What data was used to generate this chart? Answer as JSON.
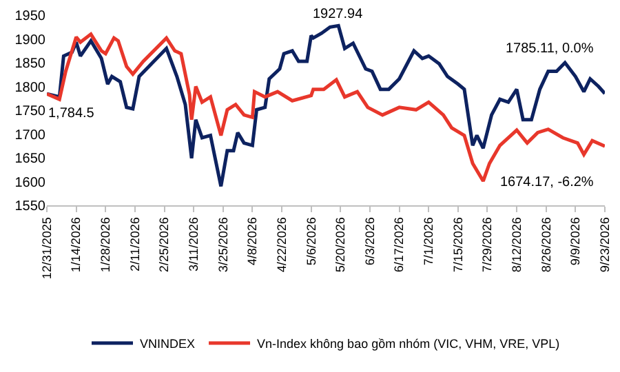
{
  "chart_data": {
    "type": "line",
    "xlim": [
      "2025-12-31",
      "2026-09-23"
    ],
    "xticks": [
      {
        "value": "2025-12-31",
        "label": "12/31/2025"
      },
      {
        "value": "2026-01-14",
        "label": "1/14/2026"
      },
      {
        "value": "2026-01-28",
        "label": "1/28/2026"
      },
      {
        "value": "2026-02-11",
        "label": "2/11/2026"
      },
      {
        "value": "2026-02-25",
        "label": "2/25/2026"
      },
      {
        "value": "2026-03-11",
        "label": "3/11/2026"
      },
      {
        "value": "2026-03-25",
        "label": "3/25/2026"
      },
      {
        "value": "2026-04-08",
        "label": "4/8/2026"
      },
      {
        "value": "2026-04-22",
        "label": "4/22/2026"
      },
      {
        "value": "2026-05-06",
        "label": "5/6/2026"
      },
      {
        "value": "2026-05-20",
        "label": "5/20/2026"
      },
      {
        "value": "2026-06-03",
        "label": "6/3/2026"
      },
      {
        "value": "2026-06-17",
        "label": "6/17/2026"
      },
      {
        "value": "2026-07-01",
        "label": "7/1/2026"
      },
      {
        "value": "2026-07-15",
        "label": "7/15/2026"
      },
      {
        "value": "2026-07-29",
        "label": "7/29/2026"
      },
      {
        "value": "2026-08-12",
        "label": "8/12/2026"
      },
      {
        "value": "2026-08-26",
        "label": "8/26/2026"
      },
      {
        "value": "2026-09-09",
        "label": "9/9/2026"
      },
      {
        "value": "2026-09-23",
        "label": "9/23/2026"
      }
    ],
    "ylim": [
      1550,
      1950
    ],
    "yticks": [
      1550,
      1600,
      1650,
      1700,
      1750,
      1800,
      1850,
      1900,
      1950
    ],
    "legend": "bottom",
    "marker": "none",
    "line_style": "solid",
    "annotations": [
      {
        "text": "1,784.5",
        "x": "2025-12-31",
        "y": 1784.5
      },
      {
        "text": "1927.94",
        "x": "2026-05-19",
        "y": 1927.94
      },
      {
        "text": "1785.11, 0.0%",
        "x": "2026-09-23",
        "y": 1785.11
      },
      {
        "text": "1674.17, -6.2%",
        "x": "2026-09-23",
        "y": 1674.17
      }
    ],
    "series": [
      {
        "name": "VNINDEX",
        "color": "#0d2260",
        "x": [
          "2025-12-31",
          "2026-01-06",
          "2026-01-08",
          "2026-01-12",
          "2026-01-14",
          "2026-01-16",
          "2026-01-21",
          "2026-01-26",
          "2026-01-29",
          "2026-01-31",
          "2026-02-04",
          "2026-02-07",
          "2026-02-10",
          "2026-02-13",
          "2026-02-26",
          "2026-03-03",
          "2026-03-07",
          "2026-03-10",
          "2026-03-12",
          "2026-03-15",
          "2026-03-19",
          "2026-03-21",
          "2026-03-24",
          "2026-03-27",
          "2026-03-30",
          "2026-04-01",
          "2026-04-04",
          "2026-04-08",
          "2026-04-10",
          "2026-04-14",
          "2026-04-16",
          "2026-04-21",
          "2026-04-23",
          "2026-04-27",
          "2026-04-30",
          "2026-05-04",
          "2026-05-06",
          "2026-05-07",
          "2026-05-11",
          "2026-05-15",
          "2026-05-19",
          "2026-05-22",
          "2026-05-26",
          "2026-06-01",
          "2026-06-04",
          "2026-06-08",
          "2026-06-12",
          "2026-06-17",
          "2026-06-24",
          "2026-06-28",
          "2026-07-01",
          "2026-07-06",
          "2026-07-10",
          "2026-07-15",
          "2026-07-18",
          "2026-07-22",
          "2026-07-24",
          "2026-07-27",
          "2026-07-31",
          "2026-08-04",
          "2026-08-08",
          "2026-08-12",
          "2026-08-15",
          "2026-08-19",
          "2026-08-23",
          "2026-08-27",
          "2026-08-31",
          "2026-09-04",
          "2026-09-09",
          "2026-09-13",
          "2026-09-16",
          "2026-09-20",
          "2026-09-23"
        ],
        "values": [
          1784.5,
          1778,
          1864,
          1872,
          1893,
          1864,
          1896,
          1859,
          1805,
          1821,
          1810,
          1756,
          1753,
          1821,
          1880,
          1821,
          1762,
          1649,
          1730,
          1692,
          1697,
          1654,
          1590,
          1665,
          1665,
          1703,
          1681,
          1676,
          1751,
          1756,
          1816,
          1837,
          1869,
          1875,
          1853,
          1853,
          1907,
          1902,
          1912,
          1925,
          1927.94,
          1880,
          1891,
          1837,
          1832,
          1794,
          1794,
          1816,
          1875,
          1859,
          1864,
          1848,
          1821,
          1805,
          1794,
          1676,
          1697,
          1670,
          1740,
          1773,
          1767,
          1794,
          1730,
          1730,
          1794,
          1832,
          1832,
          1850,
          1821,
          1789,
          1816,
          1800,
          1785.11
        ]
      },
      {
        "name": "Vn-Index không bao gồm nhóm (VIC, VHM, VRE, VPL)",
        "color": "#e8372b",
        "x": [
          "2025-12-31",
          "2026-01-06",
          "2026-01-09",
          "2026-01-14",
          "2026-01-16",
          "2026-01-21",
          "2026-01-26",
          "2026-01-28",
          "2026-02-01",
          "2026-02-03",
          "2026-02-07",
          "2026-02-10",
          "2026-02-15",
          "2026-02-26",
          "2026-03-02",
          "2026-03-05",
          "2026-03-09",
          "2026-03-10",
          "2026-03-12",
          "2026-03-15",
          "2026-03-19",
          "2026-03-24",
          "2026-03-27",
          "2026-03-31",
          "2026-04-04",
          "2026-04-08",
          "2026-04-09",
          "2026-04-14",
          "2026-04-20",
          "2026-04-27",
          "2026-05-06",
          "2026-05-07",
          "2026-05-12",
          "2026-05-18",
          "2026-05-22",
          "2026-05-28",
          "2026-06-02",
          "2026-06-09",
          "2026-06-17",
          "2026-06-25",
          "2026-07-01",
          "2026-07-08",
          "2026-07-12",
          "2026-07-18",
          "2026-07-22",
          "2026-07-27",
          "2026-07-30",
          "2026-08-04",
          "2026-08-12",
          "2026-08-17",
          "2026-08-22",
          "2026-08-27",
          "2026-09-03",
          "2026-09-10",
          "2026-09-13",
          "2026-09-17",
          "2026-09-23"
        ],
        "values": [
          1784.5,
          1773,
          1832,
          1904,
          1893,
          1910,
          1875,
          1869,
          1902,
          1896,
          1842,
          1826,
          1853,
          1902,
          1875,
          1869,
          1783,
          1730,
          1800,
          1767,
          1778,
          1697,
          1751,
          1762,
          1740,
          1735,
          1789,
          1778,
          1789,
          1770,
          1781,
          1794,
          1794,
          1814,
          1778,
          1789,
          1756,
          1740,
          1756,
          1751,
          1767,
          1740,
          1713,
          1697,
          1638,
          1601,
          1638,
          1676,
          1708,
          1681,
          1703,
          1710,
          1692,
          1681,
          1657,
          1686,
          1674.17
        ]
      }
    ]
  }
}
